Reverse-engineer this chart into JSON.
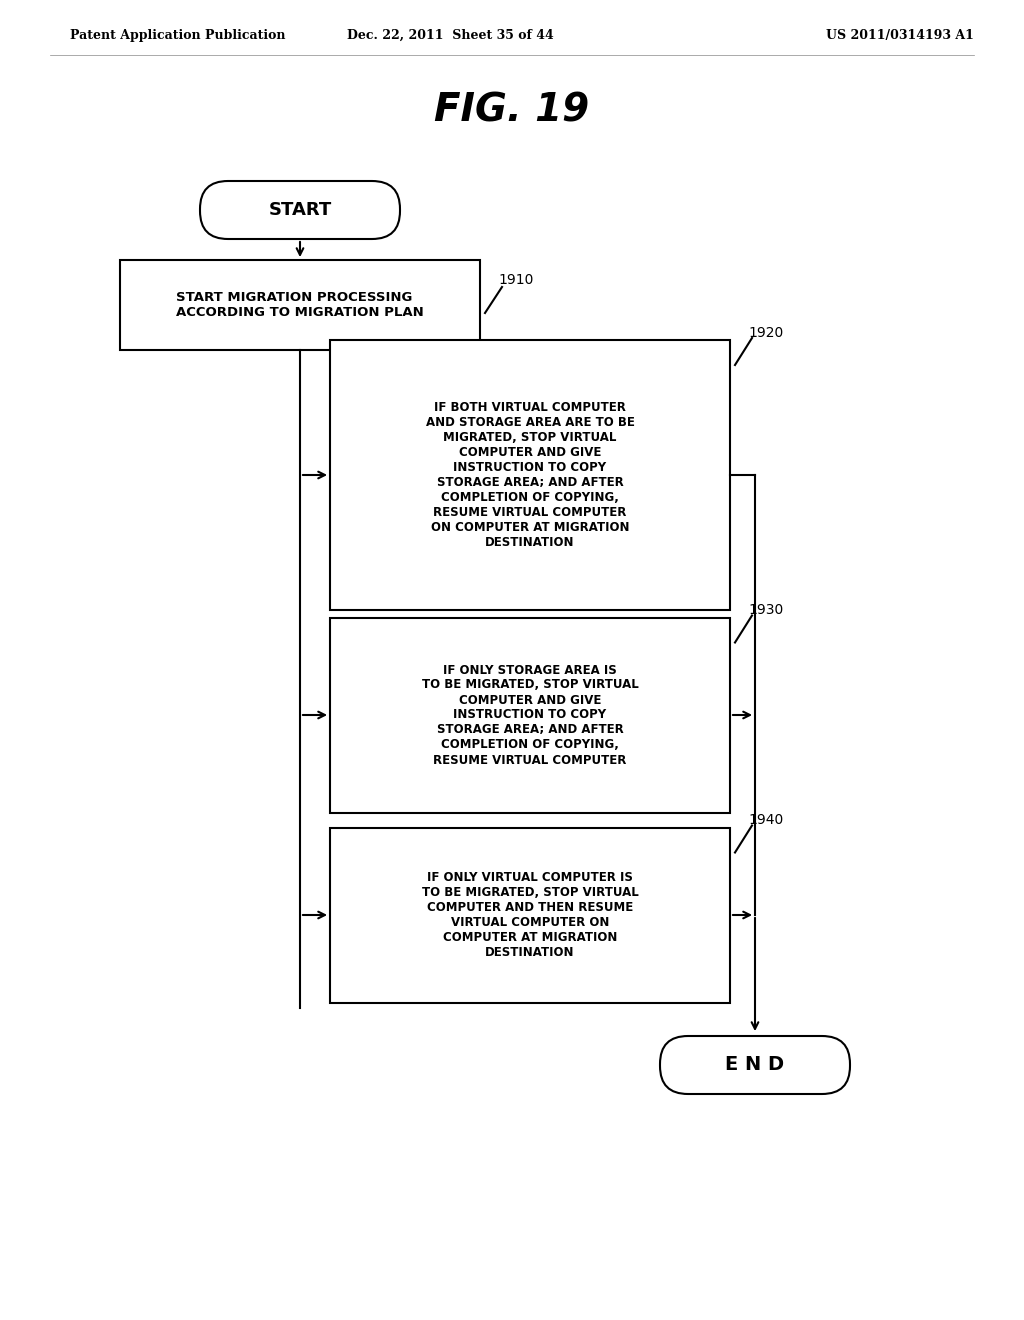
{
  "header_left": "Patent Application Publication",
  "header_mid": "Dec. 22, 2011  Sheet 35 of 44",
  "header_right": "US 2011/0314193 A1",
  "title": "FIG. 19",
  "start_label": "START",
  "end_label": "E N D",
  "box1_label": "START MIGRATION PROCESSING\nACCORDING TO MIGRATION PLAN",
  "box1_id": "1910",
  "box2_label": "IF BOTH VIRTUAL COMPUTER\nAND STORAGE AREA ARE TO BE\nMIGRATED, STOP VIRTUAL\nCOMPUTER AND GIVE\nINSTRUCTION TO COPY\nSTORAGE AREA; AND AFTER\nCOMPLETION OF COPYING,\nRESUME VIRTUAL COMPUTER\nON COMPUTER AT MIGRATION\nDESTINATION",
  "box2_id": "1920",
  "box3_label": "IF ONLY STORAGE AREA IS\nTO BE MIGRATED, STOP VIRTUAL\nCOMPUTER AND GIVE\nINSTRUCTION TO COPY\nSTORAGE AREA; AND AFTER\nCOMPLETION OF COPYING,\nRESUME VIRTUAL COMPUTER",
  "box3_id": "1930",
  "box4_label": "IF ONLY VIRTUAL COMPUTER IS\nTO BE MIGRATED, STOP VIRTUAL\nCOMPUTER AND THEN RESUME\nVIRTUAL COMPUTER ON\nCOMPUTER AT MIGRATION\nDESTINATION",
  "box4_id": "1940",
  "bg_color": "#ffffff",
  "line_color": "#000000",
  "text_color": "#000000"
}
